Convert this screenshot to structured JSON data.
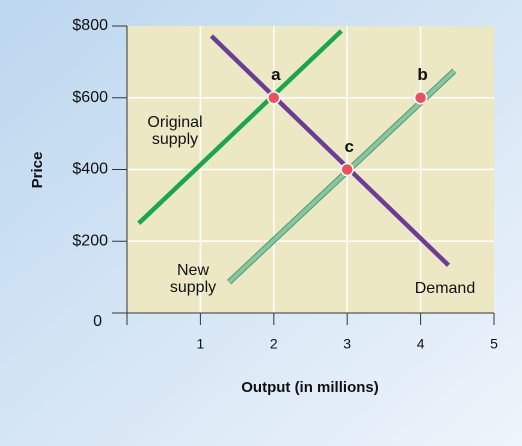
{
  "chart_data": {
    "type": "line",
    "xlabel": "Output (in millions)",
    "ylabel": "Price",
    "xlim": [
      0,
      5
    ],
    "xticks": [
      1,
      2,
      3,
      4,
      5
    ],
    "ylim": [
      0,
      800
    ],
    "yticks": [
      0,
      {
        "value": 200,
        "label": "$200"
      },
      {
        "value": 400,
        "label": "$400"
      },
      {
        "value": 600,
        "label": "$600"
      },
      {
        "value": 800,
        "label": "$800"
      }
    ],
    "grid": true,
    "series": [
      {
        "name": "Original supply",
        "color": "#17a84a",
        "x": [
          0.16,
          2.92
        ],
        "values": [
          250,
          786
        ]
      },
      {
        "name": "Demand",
        "color": "#6b3c98",
        "x": [
          1.15,
          4.38
        ],
        "values": [
          772,
          133
        ]
      },
      {
        "name": "New supply",
        "color": "#86c79f",
        "x": [
          1.39,
          4.46
        ],
        "values": [
          86,
          675
        ]
      }
    ],
    "points": [
      {
        "label": "a",
        "x": 2,
        "y": 600
      },
      {
        "label": "b",
        "x": 4,
        "y": 600
      },
      {
        "label": "c",
        "x": 3,
        "y": 400
      }
    ],
    "point_color": "#ef4f5c"
  }
}
